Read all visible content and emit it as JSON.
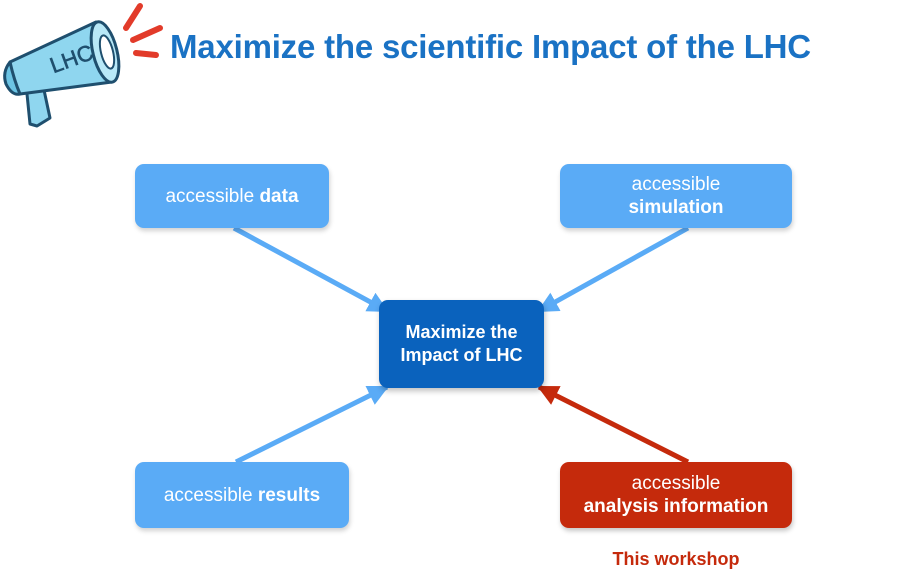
{
  "title": "Maximize the scientific Impact of the LHC",
  "logo": {
    "text": "LHC",
    "icon": "megaphone-icon",
    "colors": {
      "fill": "#8fd6ef",
      "stroke": "#1f4f6e",
      "burst": "#e23b2a"
    }
  },
  "nodes": {
    "data": {
      "prefix": "accessible ",
      "bold": "data"
    },
    "simulation": {
      "line1": "accessible",
      "line2": "simulation"
    },
    "center": {
      "line1": "Maximize the",
      "line2": "Impact of LHC"
    },
    "results": {
      "prefix": "accessible ",
      "bold": "results"
    },
    "analysis": {
      "line1": "accessible",
      "line2": "analysis information"
    }
  },
  "edges": [
    {
      "from": "data",
      "to": "center",
      "color": "#5aabf6"
    },
    {
      "from": "simulation",
      "to": "center",
      "color": "#5aabf6"
    },
    {
      "from": "results",
      "to": "center",
      "color": "#5aabf6"
    },
    {
      "from": "analysis",
      "to": "center",
      "color": "#c52a0c"
    }
  ],
  "note": "This workshop",
  "colors": {
    "title": "#1a72c4",
    "light_box": "#5aabf6",
    "center_box": "#0a62bd",
    "highlight": "#c52a0c"
  }
}
